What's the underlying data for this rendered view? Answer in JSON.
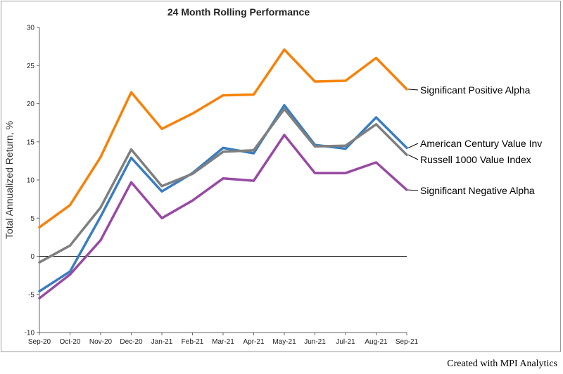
{
  "chart_data": {
    "type": "line",
    "title": "24 Month Rolling Performance",
    "ylabel": "Total Annualized Return, %",
    "xlabel": "",
    "categories": [
      "Sep-20",
      "Oct-20",
      "Nov-20",
      "Dec-20",
      "Jan-21",
      "Feb-21",
      "Mar-21",
      "Apr-21",
      "May-21",
      "Jun-21",
      "Jul-21",
      "Aug-21",
      "Sep-21"
    ],
    "ylim": [
      -10,
      30
    ],
    "yticks": [
      -10,
      -5,
      0,
      5,
      10,
      15,
      20,
      25,
      30
    ],
    "grid": false,
    "zero_line": true,
    "series": [
      {
        "name": "Significant Positive Alpha",
        "color": "#f5820a",
        "values": [
          3.8,
          6.7,
          13.0,
          21.5,
          16.7,
          18.7,
          21.1,
          21.2,
          27.1,
          22.9,
          23.0,
          26.0,
          21.9
        ]
      },
      {
        "name": "American Century Value Inv",
        "color": "#3a7ebf",
        "values": [
          -4.6,
          -2.0,
          5.2,
          12.9,
          8.5,
          10.9,
          14.2,
          13.5,
          19.8,
          14.6,
          14.1,
          18.2,
          14.2
        ]
      },
      {
        "name": "Russell 1000 Value Index",
        "color": "#7f7f7f",
        "values": [
          -0.8,
          1.4,
          6.4,
          14.0,
          9.2,
          10.8,
          13.7,
          13.9,
          19.3,
          14.4,
          14.5,
          17.3,
          13.3
        ]
      },
      {
        "name": "Significant Negative Alpha",
        "color": "#984aa3",
        "values": [
          -5.5,
          -2.4,
          2.1,
          9.7,
          5.0,
          7.3,
          10.2,
          9.9,
          15.9,
          10.9,
          10.9,
          12.3,
          8.7
        ]
      }
    ]
  },
  "credit": "Created with MPI Analytics"
}
